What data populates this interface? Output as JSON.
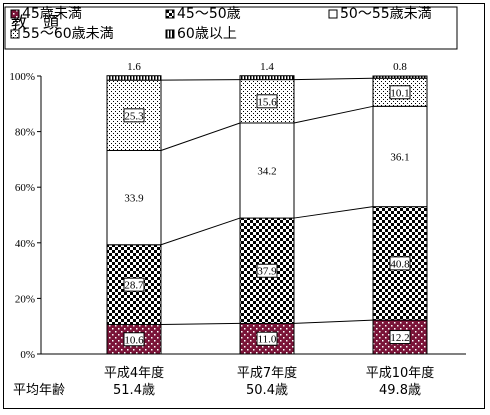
{
  "title": "教　頭",
  "footer_label": "平均年齢",
  "average_ages": [
    "51.4歳",
    "50.4歳",
    "49.8歳"
  ],
  "chart_data": {
    "type": "bar",
    "stacked": true,
    "percent": true,
    "categories": [
      "平成4年度",
      "平成7年度",
      "平成10年度"
    ],
    "series": [
      {
        "name": "45歳未満",
        "values": [
          10.6,
          11.0,
          12.2
        ],
        "labels": [
          "10.6",
          "11.0",
          "12.2"
        ],
        "pattern": "maroon-dots"
      },
      {
        "name": "45～50歳",
        "values": [
          28.7,
          37.9,
          40.8
        ],
        "labels": [
          "28.7",
          "37.9",
          "40.8"
        ],
        "pattern": "checker"
      },
      {
        "name": "50～55歳未満",
        "values": [
          33.9,
          34.2,
          36.1
        ],
        "labels": [
          "33.9",
          "34.2",
          "36.1"
        ],
        "pattern": "white"
      },
      {
        "name": "55～60歳未満",
        "values": [
          25.3,
          15.6,
          10.1
        ],
        "labels": [
          "25.3",
          "15.6",
          "10.1"
        ],
        "pattern": "fine-dots"
      },
      {
        "name": "60歳以上",
        "values": [
          1.6,
          1.4,
          0.8
        ],
        "labels": [
          "1.6",
          "1.4",
          "0.8"
        ],
        "pattern": "vertical-lines"
      }
    ],
    "ylim": [
      0,
      100
    ],
    "yticks": [
      "0%",
      "20%",
      "40%",
      "60%",
      "80%",
      "100%"
    ],
    "legend_position": "top",
    "grid": false
  }
}
